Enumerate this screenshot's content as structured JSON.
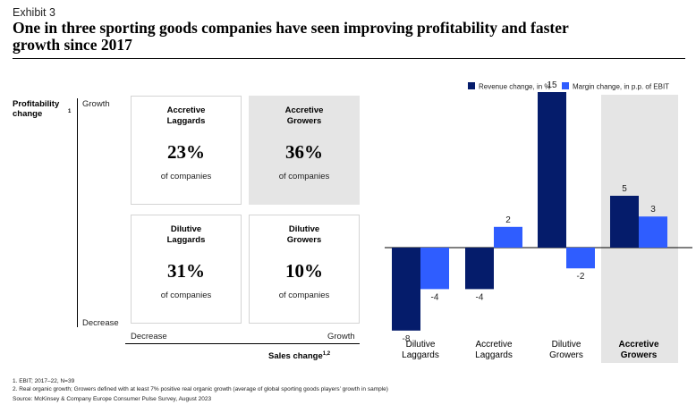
{
  "header": {
    "exhibit": "Exhibit 3",
    "title": "One in three sporting goods companies have seen improving profitability and faster growth since 2017"
  },
  "matrix": {
    "y_axis_label": "Profitability change",
    "y_axis_label_sup": "1",
    "y_top": "Growth",
    "y_bottom": "Decrease",
    "x_left": "Decrease",
    "x_right": "Growth",
    "x_axis_label": "Sales change",
    "x_axis_label_sup": "1,2",
    "quadrants": {
      "top_left": {
        "name": "Accretive Laggards",
        "pct": "23%",
        "sub": "of companies"
      },
      "top_right": {
        "name": "Accretive Growers",
        "pct": "36%",
        "sub": "of companies"
      },
      "bottom_left": {
        "name": "Dilutive Laggards",
        "pct": "31%",
        "sub": "of companies"
      },
      "bottom_right": {
        "name": "Dilutive Growers",
        "pct": "10%",
        "sub": "of companies"
      }
    }
  },
  "chart_data": {
    "type": "bar",
    "title": "",
    "categories": [
      "Dilutive Laggards",
      "Accretive Laggards",
      "Dilutive Growers",
      "Accretive Growers"
    ],
    "highlighted_category": "Accretive Growers",
    "series": [
      {
        "name": "Revenue change, in %",
        "color": "#051c6b",
        "values": [
          -8,
          -4,
          15,
          5
        ]
      },
      {
        "name": "Margin change, in p.p. of EBIT",
        "color": "#2f5dff",
        "values": [
          -4,
          2,
          -2,
          3
        ]
      }
    ],
    "legend_position": "top-right",
    "ylim": [
      -8,
      15
    ],
    "highlight_color": "#e5e5e5"
  },
  "footnotes": {
    "note1": "1.  EBIT; 2017–22, N=39",
    "note2": "2.  Real organic growth; Growers defined with at least 7% positive real organic growth (average of global sporting goods players’ growth in sample)",
    "source": "Source: McKinsey & Company Europe Consumer Pulse Survey, August 2023"
  }
}
